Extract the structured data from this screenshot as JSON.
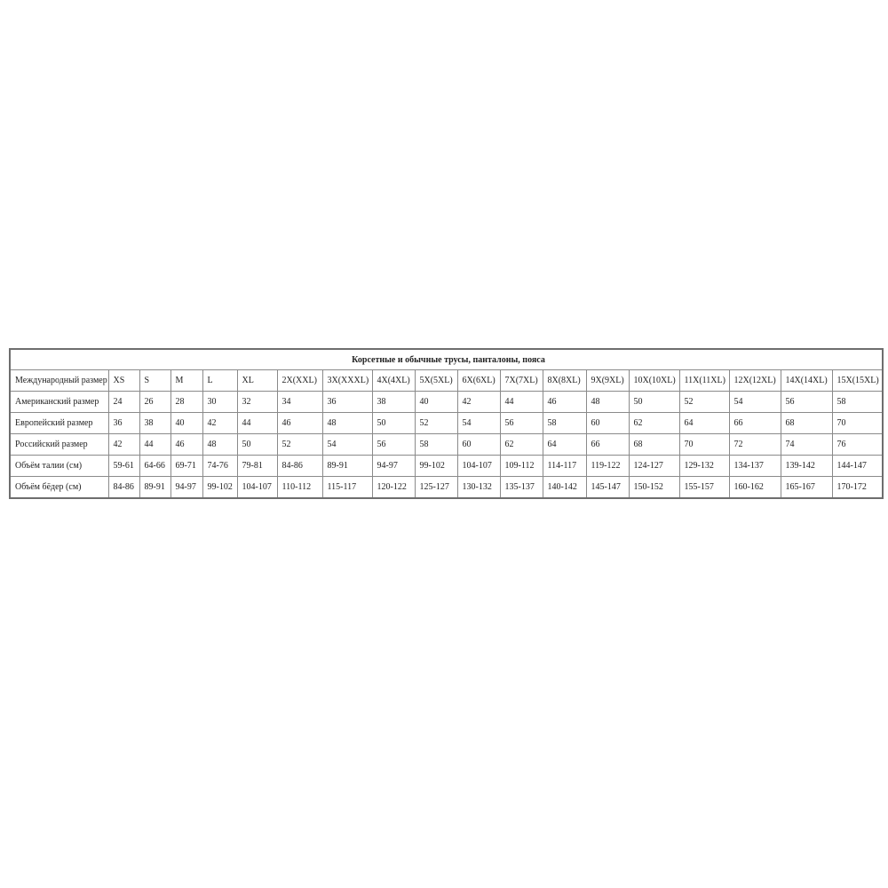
{
  "table": {
    "title": "Корсетные и обычные трусы, панталоны, пояса",
    "rows": [
      {
        "label": "Международный размер",
        "cells": [
          "XS",
          "S",
          "M",
          "L",
          "XL",
          "2X(XXL)",
          "3X(XXXL)",
          "4X(4XL)",
          "5X(5XL)",
          "6X(6XL)",
          "7X(7XL)",
          "8X(8XL)",
          "9X(9XL)",
          "10X(10XL)",
          "11X(11XL)",
          "12X(12XL)",
          "14X(14XL)",
          "15X(15XL)"
        ]
      },
      {
        "label": "Американский размер",
        "cells": [
          "24",
          "26",
          "28",
          "30",
          "32",
          "34",
          "36",
          "38",
          "40",
          "42",
          "44",
          "46",
          "48",
          "50",
          "52",
          "54",
          "56",
          "58"
        ]
      },
      {
        "label": "Европейский размер",
        "cells": [
          "36",
          "38",
          "40",
          "42",
          "44",
          "46",
          "48",
          "50",
          "52",
          "54",
          "56",
          "58",
          "60",
          "62",
          "64",
          "66",
          "68",
          "70"
        ]
      },
      {
        "label": "Российский размер",
        "cells": [
          "42",
          "44",
          "46",
          "48",
          "50",
          "52",
          "54",
          "56",
          "58",
          "60",
          "62",
          "64",
          "66",
          "68",
          "70",
          "72",
          "74",
          "76"
        ]
      },
      {
        "label": "Объём талии (см)",
        "cells": [
          "59-61",
          "64-66",
          "69-71",
          "74-76",
          "79-81",
          "84-86",
          "89-91",
          "94-97",
          "99-102",
          "104-107",
          "109-112",
          "114-117",
          "119-122",
          "124-127",
          "129-132",
          "134-137",
          "139-142",
          "144-147"
        ]
      },
      {
        "label": "Объём бёдер (см)",
        "cells": [
          "84-86",
          "89-91",
          "94-97",
          "99-102",
          "104-107",
          "110-112",
          "115-117",
          "120-122",
          "125-127",
          "130-132",
          "135-137",
          "140-142",
          "145-147",
          "150-152",
          "155-157",
          "160-162",
          "165-167",
          "170-172"
        ]
      }
    ]
  }
}
